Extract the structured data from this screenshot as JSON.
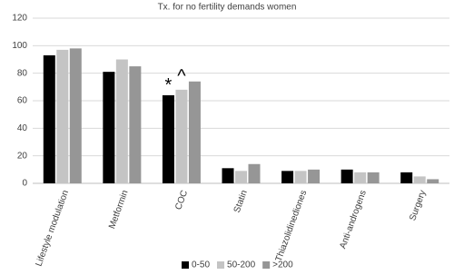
{
  "chart_data": {
    "type": "bar",
    "title": "Tx. for no fertility demands women",
    "categories": [
      "Lifestyle modulation",
      "Metformin",
      "COC",
      "Statin",
      "Thiazolidinediones",
      "Anti-androgens",
      "Surgery"
    ],
    "series": [
      {
        "name": "0-50",
        "color": "#000000",
        "values": [
          93,
          81,
          64,
          11,
          9,
          10,
          8
        ]
      },
      {
        "name": "50-200",
        "color": "#c4c4c4",
        "values": [
          97,
          90,
          68,
          9,
          9,
          8,
          5
        ]
      },
      {
        "name": ">200",
        "color": "#969696",
        "values": [
          98,
          85,
          74,
          14,
          10,
          8,
          3
        ]
      }
    ],
    "annotations": [
      "*",
      "^"
    ],
    "ylim": [
      0,
      120
    ],
    "yticks": [
      0,
      20,
      40,
      60,
      80,
      100,
      120
    ],
    "grid": true,
    "legend": "bottom"
  }
}
